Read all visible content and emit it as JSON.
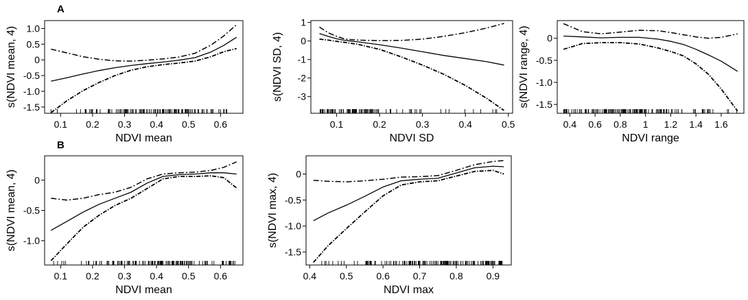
{
  "figure": {
    "panel_labels": [
      "A",
      "B"
    ]
  },
  "chart_data": [
    {
      "type": "line",
      "panel": "A",
      "xlabel": "NDVI mean",
      "ylabel": "s(NDVI mean, 4)",
      "xlim": [
        0.05,
        0.67
      ],
      "ylim": [
        -1.7,
        1.25
      ],
      "xticks": [
        0.1,
        0.2,
        0.3,
        0.4,
        0.5,
        0.6
      ],
      "yticks": [
        -1.5,
        -1.0,
        -0.5,
        0,
        0.5,
        1.0
      ],
      "xtick_labels": [
        "0.1",
        "0.2",
        "0.3",
        "0.4",
        "0.5",
        "0.6"
      ],
      "ytick_labels": [
        "-1.5",
        "-1.0",
        "-0.5",
        "0",
        "0.5",
        "1.0"
      ],
      "x_range": [
        0.07,
        0.65
      ],
      "series": [
        {
          "role": "fit",
          "x": [
            0.07,
            0.12,
            0.17,
            0.22,
            0.27,
            0.32,
            0.37,
            0.42,
            0.47,
            0.52,
            0.57,
            0.61,
            0.65
          ],
          "y": [
            -0.68,
            -0.57,
            -0.45,
            -0.34,
            -0.25,
            -0.18,
            -0.12,
            -0.07,
            -0.01,
            0.07,
            0.25,
            0.46,
            0.72
          ]
        },
        {
          "role": "upper",
          "x": [
            0.07,
            0.12,
            0.17,
            0.22,
            0.27,
            0.32,
            0.37,
            0.42,
            0.47,
            0.52,
            0.57,
            0.61,
            0.65
          ],
          "y": [
            0.34,
            0.22,
            0.1,
            0.02,
            -0.03,
            -0.04,
            -0.01,
            0.03,
            0.09,
            0.21,
            0.47,
            0.76,
            1.12
          ]
        },
        {
          "role": "lower",
          "x": [
            0.07,
            0.12,
            0.17,
            0.22,
            0.27,
            0.32,
            0.37,
            0.42,
            0.47,
            0.52,
            0.57,
            0.61,
            0.65
          ],
          "y": [
            -1.68,
            -1.3,
            -0.98,
            -0.72,
            -0.5,
            -0.33,
            -0.22,
            -0.15,
            -0.1,
            -0.04,
            0.1,
            0.26,
            0.36
          ]
        }
      ],
      "rug_density": [
        [
          0.07,
          0.2,
          0.2
        ],
        [
          0.2,
          0.32,
          0.45
        ],
        [
          0.32,
          0.5,
          0.9
        ],
        [
          0.5,
          0.6,
          0.5
        ],
        [
          0.6,
          0.65,
          0.2
        ]
      ]
    },
    {
      "type": "line",
      "panel": "A",
      "xlabel": "NDVI SD",
      "ylabel": "s(NDVI SD, 4)",
      "xlim": [
        0.04,
        0.51
      ],
      "ylim": [
        -3.9,
        1.1
      ],
      "xticks": [
        0.1,
        0.2,
        0.3,
        0.4,
        0.5
      ],
      "yticks": [
        -3,
        -2,
        -1,
        0,
        1
      ],
      "xtick_labels": [
        "0.1",
        "0.2",
        "0.3",
        "0.4",
        "0.5"
      ],
      "ytick_labels": [
        "-3",
        "-2",
        "-1",
        "0",
        "1"
      ],
      "x_range": [
        0.06,
        0.49
      ],
      "series": [
        {
          "role": "fit",
          "x": [
            0.06,
            0.08,
            0.1,
            0.12,
            0.15,
            0.2,
            0.25,
            0.3,
            0.35,
            0.4,
            0.45,
            0.49
          ],
          "y": [
            0.4,
            0.25,
            0.12,
            0.03,
            -0.05,
            -0.2,
            -0.38,
            -0.58,
            -0.78,
            -0.95,
            -1.12,
            -1.3
          ]
        },
        {
          "role": "upper",
          "x": [
            0.06,
            0.08,
            0.1,
            0.12,
            0.15,
            0.2,
            0.25,
            0.3,
            0.35,
            0.4,
            0.45,
            0.49
          ],
          "y": [
            0.75,
            0.45,
            0.25,
            0.1,
            0.05,
            0.02,
            0.03,
            0.1,
            0.25,
            0.45,
            0.7,
            0.95
          ]
        },
        {
          "role": "lower",
          "x": [
            0.06,
            0.08,
            0.1,
            0.12,
            0.15,
            0.2,
            0.25,
            0.3,
            0.35,
            0.4,
            0.45,
            0.49
          ],
          "y": [
            0.1,
            0.05,
            -0.02,
            -0.08,
            -0.18,
            -0.45,
            -0.85,
            -1.3,
            -1.8,
            -2.4,
            -3.1,
            -3.75
          ]
        }
      ],
      "rug_density": [
        [
          0.06,
          0.2,
          1.0
        ],
        [
          0.2,
          0.3,
          0.25
        ],
        [
          0.3,
          0.49,
          0.08
        ]
      ]
    },
    {
      "type": "line",
      "panel": "A",
      "xlabel": "NDVI range",
      "ylabel": "s(NDVI range, 4)",
      "xlim": [
        0.3,
        1.78
      ],
      "ylim": [
        -1.7,
        0.4
      ],
      "xticks": [
        0.4,
        0.6,
        0.8,
        1.0,
        1.2,
        1.4,
        1.6
      ],
      "yticks": [
        -1.5,
        -1.0,
        -0.5,
        0
      ],
      "xtick_labels": [
        "0.4",
        "0.6",
        "0.8",
        "1",
        "1.2",
        "1.4",
        "1.6"
      ],
      "ytick_labels": [
        "-1.5",
        "-1.0",
        "-0.5",
        "0"
      ],
      "x_range": [
        0.35,
        1.73
      ],
      "series": [
        {
          "role": "fit",
          "x": [
            0.35,
            0.5,
            0.65,
            0.8,
            0.95,
            1.1,
            1.2,
            1.3,
            1.4,
            1.5,
            1.6,
            1.73
          ],
          "y": [
            0.05,
            0.03,
            0.01,
            0.02,
            0.02,
            -0.02,
            -0.07,
            -0.14,
            -0.25,
            -0.38,
            -0.52,
            -0.75
          ]
        },
        {
          "role": "upper",
          "x": [
            0.35,
            0.5,
            0.65,
            0.8,
            0.95,
            1.1,
            1.2,
            1.3,
            1.4,
            1.5,
            1.6,
            1.73
          ],
          "y": [
            0.33,
            0.15,
            0.1,
            0.14,
            0.18,
            0.17,
            0.13,
            0.08,
            0.03,
            0.0,
            0.02,
            0.1
          ]
        },
        {
          "role": "lower",
          "x": [
            0.35,
            0.5,
            0.65,
            0.8,
            0.95,
            1.1,
            1.2,
            1.3,
            1.4,
            1.5,
            1.6,
            1.73
          ],
          "y": [
            -0.25,
            -0.12,
            -0.1,
            -0.1,
            -0.13,
            -0.22,
            -0.3,
            -0.4,
            -0.58,
            -0.82,
            -1.15,
            -1.65
          ]
        }
      ],
      "rug_density": [
        [
          0.35,
          1.0,
          1.0
        ],
        [
          1.0,
          1.3,
          0.55
        ],
        [
          1.3,
          1.73,
          0.22
        ]
      ]
    },
    {
      "type": "line",
      "panel": "B",
      "xlabel": "NDVI mean",
      "ylabel": "s(NDVI mean, 4)",
      "xlim": [
        0.05,
        0.67
      ],
      "ylim": [
        -1.4,
        0.4
      ],
      "xticks": [
        0.1,
        0.2,
        0.3,
        0.4,
        0.5,
        0.6
      ],
      "yticks": [
        -1.0,
        -0.5,
        0
      ],
      "xtick_labels": [
        "0.1",
        "0.2",
        "0.3",
        "0.4",
        "0.5",
        "0.6"
      ],
      "ytick_labels": [
        "-1.0",
        "-0.5",
        "0"
      ],
      "x_range": [
        0.07,
        0.65
      ],
      "series": [
        {
          "role": "fit",
          "x": [
            0.07,
            0.12,
            0.17,
            0.22,
            0.27,
            0.32,
            0.37,
            0.42,
            0.47,
            0.52,
            0.57,
            0.61,
            0.65
          ],
          "y": [
            -0.83,
            -0.68,
            -0.53,
            -0.4,
            -0.3,
            -0.2,
            -0.05,
            0.06,
            0.09,
            0.1,
            0.12,
            0.12,
            0.1
          ]
        },
        {
          "role": "upper",
          "x": [
            0.07,
            0.12,
            0.17,
            0.22,
            0.27,
            0.32,
            0.37,
            0.42,
            0.47,
            0.52,
            0.57,
            0.61,
            0.65
          ],
          "y": [
            -0.3,
            -0.33,
            -0.3,
            -0.24,
            -0.2,
            -0.12,
            0.02,
            0.1,
            0.12,
            0.13,
            0.16,
            0.21,
            0.3
          ]
        },
        {
          "role": "lower",
          "x": [
            0.07,
            0.12,
            0.17,
            0.22,
            0.27,
            0.32,
            0.37,
            0.42,
            0.47,
            0.52,
            0.57,
            0.61,
            0.65
          ],
          "y": [
            -1.33,
            -1.05,
            -0.78,
            -0.58,
            -0.42,
            -0.3,
            -0.14,
            0.02,
            0.06,
            0.06,
            0.07,
            0.04,
            -0.13
          ]
        }
      ],
      "rug_density": [
        [
          0.07,
          0.25,
          0.25
        ],
        [
          0.25,
          0.38,
          0.55
        ],
        [
          0.38,
          0.52,
          0.95
        ],
        [
          0.52,
          0.65,
          0.4
        ]
      ]
    },
    {
      "type": "line",
      "panel": "B",
      "xlabel": "NDVI max",
      "ylabel": "s(NDVI max, 4)",
      "xlim": [
        0.39,
        0.95
      ],
      "ylim": [
        -1.75,
        0.35
      ],
      "xticks": [
        0.4,
        0.5,
        0.6,
        0.7,
        0.8,
        0.9
      ],
      "yticks": [
        -1.5,
        -1.0,
        -0.5,
        0
      ],
      "xtick_labels": [
        "0.4",
        "0.5",
        "0.6",
        "0.7",
        "0.8",
        "0.9"
      ],
      "ytick_labels": [
        "-1.5",
        "-1.0",
        "-0.5",
        "0"
      ],
      "x_range": [
        0.41,
        0.93
      ],
      "series": [
        {
          "role": "fit",
          "x": [
            0.41,
            0.45,
            0.5,
            0.55,
            0.6,
            0.65,
            0.7,
            0.75,
            0.8,
            0.85,
            0.9,
            0.93
          ],
          "y": [
            -0.9,
            -0.75,
            -0.6,
            -0.43,
            -0.25,
            -0.13,
            -0.1,
            -0.08,
            0.02,
            0.12,
            0.15,
            0.14
          ]
        },
        {
          "role": "upper",
          "x": [
            0.41,
            0.45,
            0.5,
            0.55,
            0.6,
            0.65,
            0.7,
            0.75,
            0.8,
            0.85,
            0.9,
            0.93
          ],
          "y": [
            -0.12,
            -0.14,
            -0.15,
            -0.13,
            -0.1,
            -0.06,
            -0.05,
            -0.03,
            0.07,
            0.18,
            0.24,
            0.26
          ]
        },
        {
          "role": "lower",
          "x": [
            0.41,
            0.45,
            0.5,
            0.55,
            0.6,
            0.65,
            0.7,
            0.75,
            0.8,
            0.85,
            0.9,
            0.93
          ],
          "y": [
            -1.7,
            -1.38,
            -1.05,
            -0.73,
            -0.42,
            -0.21,
            -0.15,
            -0.13,
            -0.04,
            0.05,
            0.07,
            0.0
          ]
        }
      ],
      "rug_density": [
        [
          0.41,
          0.55,
          0.15
        ],
        [
          0.55,
          0.65,
          0.5
        ],
        [
          0.65,
          0.93,
          1.0
        ]
      ]
    }
  ]
}
